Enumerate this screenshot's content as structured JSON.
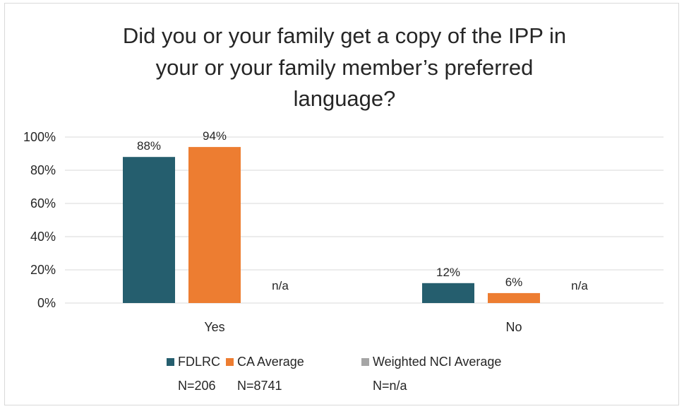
{
  "chart_data": {
    "type": "bar",
    "title": "Did you or your family get a copy of the IPP in your or your family member’s preferred language?",
    "title_lines": [
      "Did you or your family get a copy of the IPP in",
      "your or your family member’s preferred",
      "language?"
    ],
    "categories": [
      "Yes",
      "No"
    ],
    "series": [
      {
        "name": "FDLRC",
        "note": "N=206",
        "color": "#255e6e",
        "values": [
          88,
          12
        ],
        "labels": [
          "88%",
          "12%"
        ]
      },
      {
        "name": "CA Average",
        "note": "N=8741",
        "color": "#ed7d31",
        "values": [
          94,
          6
        ],
        "labels": [
          "94%",
          "6%"
        ]
      },
      {
        "name": "Weighted NCI Average",
        "note": "N=n/a",
        "color": "#a5a5a5",
        "values": [
          null,
          null
        ],
        "labels": [
          "n/a",
          "n/a"
        ]
      }
    ],
    "y_ticks": [
      "0%",
      "20%",
      "40%",
      "60%",
      "80%",
      "100%"
    ],
    "ylim": [
      0,
      100
    ],
    "grid": true,
    "legend_position": "bottom"
  }
}
